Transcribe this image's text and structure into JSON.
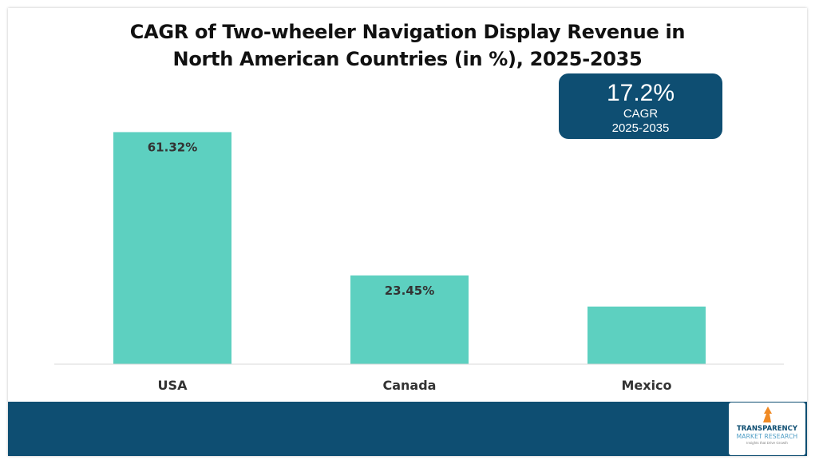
{
  "chart_data": {
    "type": "bar",
    "title": "CAGR of Two-wheeler Navigation Display Revenue in North American Countries (in %), 2025-2035",
    "title_lines": [
      "CAGR of Two-wheeler Navigation Display Revenue in",
      "North American Countries (in %), 2025-2035"
    ],
    "categories": [
      "USA",
      "Canada",
      "Mexico"
    ],
    "values": [
      61.32,
      23.45,
      15.23
    ],
    "data_labels": [
      "61.32%",
      "23.45%",
      ""
    ],
    "ylim": [
      0,
      65
    ],
    "grid": false,
    "legend": "none",
    "bar_color": "#5dd0c0"
  },
  "cagr_callout": {
    "value": "17.2%",
    "label": "CAGR",
    "period": "2025-2035",
    "background": "#0e4e72"
  },
  "footer": {
    "band_color": "#0e4e72",
    "logo": {
      "line1": "TRANSPARENCY",
      "line2": "MARKET RESEARCH",
      "tagline": "Insights that Drive Growth",
      "colors": {
        "navy": "#0e4e72",
        "blue": "#4a9bc4",
        "orange": "#f08a24"
      },
      "icon": "upward-arrow-icon"
    }
  }
}
